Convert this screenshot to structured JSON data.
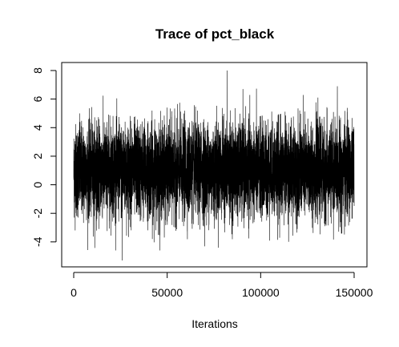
{
  "chart_data": {
    "type": "line",
    "title": "Trace of pct_black",
    "xlabel": "Iterations",
    "ylabel": "",
    "xlim": [
      0,
      150000
    ],
    "ylim": [
      -5.3,
      8.0
    ],
    "x_ticks": [
      0,
      50000,
      100000,
      150000
    ],
    "x_tick_labels": [
      "0",
      "50000",
      "100000",
      "150000"
    ],
    "y_ticks": [
      -4,
      -2,
      0,
      2,
      4,
      6,
      8
    ],
    "y_tick_labels": [
      "-4",
      "-2",
      "0",
      "2",
      "4",
      "6",
      "8"
    ],
    "grid": false,
    "legend": "none",
    "line_color": "#000000",
    "series": [
      {
        "summary": {
          "n_iterations": 150000,
          "center": 1.0,
          "typical_spread_sd": 1.6,
          "max": 8.0,
          "max_at": 82000,
          "min": -5.3,
          "min_at": 26000
        }
      }
    ]
  }
}
